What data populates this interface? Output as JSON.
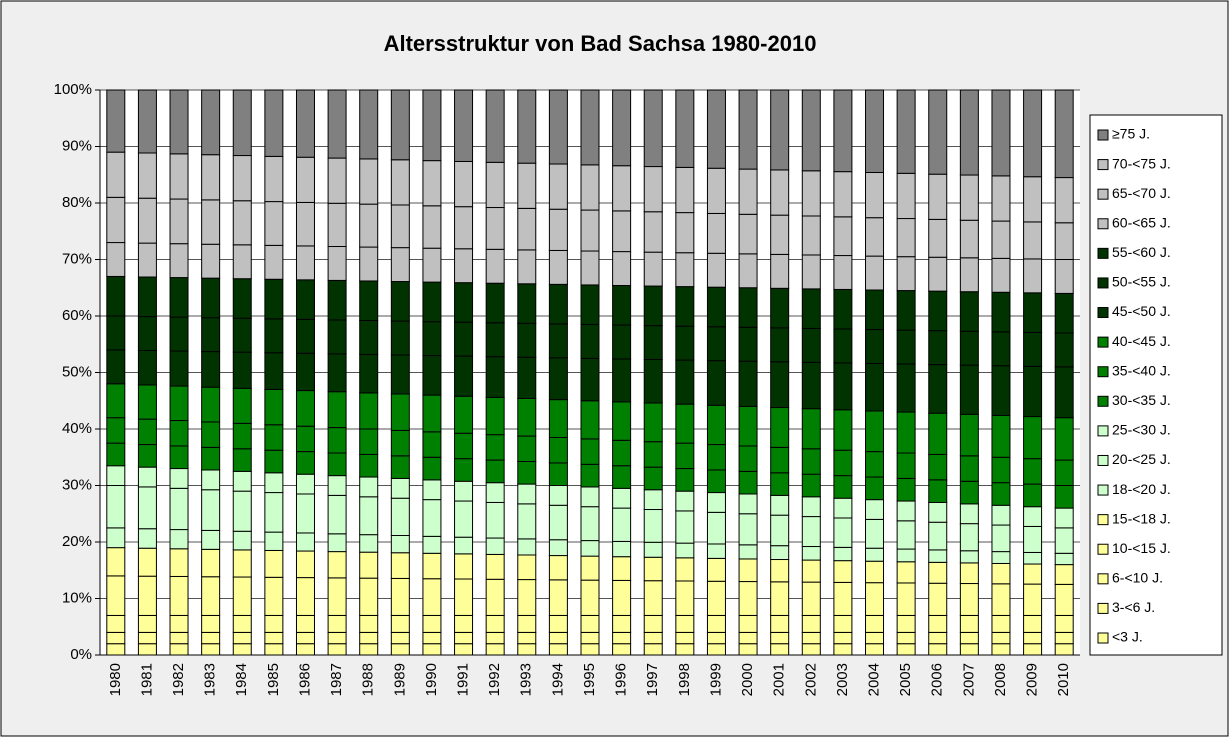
{
  "chart_data": {
    "type": "stacked_bar_100",
    "title": "Altersstruktur von Bad Sachsa 1980-2010",
    "categories": [
      "1980",
      "1981",
      "1982",
      "1983",
      "1984",
      "1985",
      "1986",
      "1987",
      "1988",
      "1989",
      "1990",
      "1991",
      "1992",
      "1993",
      "1994",
      "1995",
      "1996",
      "1997",
      "1998",
      "1999",
      "2000",
      "2001",
      "2002",
      "2003",
      "2004",
      "2005",
      "2006",
      "2007",
      "2008",
      "2009",
      "2010"
    ],
    "ylim": [
      0,
      100
    ],
    "yticks": [
      {
        "value": 0,
        "label": "0%"
      },
      {
        "value": 10,
        "label": "10%"
      },
      {
        "value": 20,
        "label": "20%"
      },
      {
        "value": 30,
        "label": "30%"
      },
      {
        "value": 40,
        "label": "40%"
      },
      {
        "value": 50,
        "label": "50%"
      },
      {
        "value": 60,
        "label": "60%"
      },
      {
        "value": 70,
        "label": "70%"
      },
      {
        "value": 80,
        "label": "80%"
      },
      {
        "value": 90,
        "label": "90%"
      },
      {
        "value": 100,
        "label": "100%"
      }
    ],
    "grid": true,
    "legend": "right",
    "series": [
      {
        "name": "<3 J.",
        "color": "#ffff99",
        "values": [
          2,
          2,
          2,
          2,
          2,
          2,
          2,
          2,
          2,
          2,
          2,
          2,
          2,
          2,
          2,
          2,
          2,
          2,
          2,
          2,
          2,
          2,
          2,
          2,
          2,
          2,
          2,
          2,
          2,
          2,
          2
        ]
      },
      {
        "name": "3-<6 J.",
        "color": "#ffff99",
        "values": [
          2,
          2,
          2,
          2,
          2,
          2,
          2,
          2,
          2,
          2,
          2,
          2,
          2,
          2,
          2,
          2,
          2,
          2,
          2,
          2,
          2,
          2,
          2,
          2,
          2,
          2,
          2,
          2,
          2,
          2,
          2
        ]
      },
      {
        "name": "6-<10 J.",
        "color": "#ffff99",
        "values": [
          3,
          3,
          3,
          3,
          3,
          3,
          3,
          3,
          3,
          3,
          3,
          3,
          3,
          3,
          3,
          3,
          3,
          3,
          3,
          3,
          3,
          3,
          3,
          3,
          3,
          3,
          3,
          3,
          3,
          3,
          3
        ]
      },
      {
        "name": "10-<15 J.",
        "color": "#ffff99",
        "values": [
          7,
          6.95,
          6.9,
          6.85,
          6.8,
          6.75,
          6.7,
          6.65,
          6.6,
          6.55,
          6.5,
          6.45,
          6.4,
          6.35,
          6.3,
          6.25,
          6.2,
          6.15,
          6.1,
          6.05,
          6,
          5.95,
          5.9,
          5.85,
          5.8,
          5.75,
          5.7,
          5.65,
          5.6,
          5.55,
          5.5
        ]
      },
      {
        "name": "15-<18 J.",
        "color": "#ffff99",
        "values": [
          5,
          4.95,
          4.9,
          4.85,
          4.8,
          4.75,
          4.7,
          4.65,
          4.6,
          4.55,
          4.5,
          4.45,
          4.4,
          4.35,
          4.3,
          4.25,
          4.2,
          4.15,
          4.1,
          4.05,
          4,
          3.95,
          3.9,
          3.85,
          3.8,
          3.75,
          3.7,
          3.65,
          3.6,
          3.55,
          3.5
        ]
      },
      {
        "name": "18-<20 J.",
        "color": "#ccffcc",
        "values": [
          3.5,
          3.45,
          3.4,
          3.35,
          3.3,
          3.25,
          3.2,
          3.15,
          3.1,
          3.05,
          3,
          2.95,
          2.9,
          2.85,
          2.8,
          2.75,
          2.7,
          2.65,
          2.6,
          2.55,
          2.5,
          2.45,
          2.4,
          2.35,
          2.3,
          2.25,
          2.2,
          2.15,
          2.1,
          2.05,
          2
        ]
      },
      {
        "name": "20-<25 J.",
        "color": "#ccffcc",
        "values": [
          7.5,
          7.4,
          7.3,
          7.2,
          7.1,
          7,
          6.9,
          6.8,
          6.7,
          6.6,
          6.5,
          6.4,
          6.3,
          6.2,
          6.1,
          6,
          5.9,
          5.8,
          5.7,
          5.6,
          5.5,
          5.4,
          5.3,
          5.2,
          5.1,
          5,
          4.9,
          4.8,
          4.7,
          4.6,
          4.5
        ]
      },
      {
        "name": "25-<30 J.",
        "color": "#ccffcc",
        "values": [
          3.5,
          3.5,
          3.5,
          3.5,
          3.5,
          3.5,
          3.5,
          3.5,
          3.5,
          3.5,
          3.5,
          3.5,
          3.5,
          3.5,
          3.5,
          3.5,
          3.5,
          3.5,
          3.5,
          3.5,
          3.5,
          3.5,
          3.5,
          3.5,
          3.5,
          3.5,
          3.5,
          3.5,
          3.5,
          3.5,
          3.5
        ]
      },
      {
        "name": "30-<35 J.",
        "color": "#008000",
        "values": [
          4,
          4,
          4,
          4,
          4,
          4,
          4,
          4,
          4,
          4,
          4,
          4,
          4,
          4,
          4,
          4,
          4,
          4,
          4,
          4,
          4,
          4,
          4,
          4,
          4,
          4,
          4,
          4,
          4,
          4,
          4
        ]
      },
      {
        "name": "35-<40 J.",
        "color": "#008000",
        "values": [
          4.5,
          4.5,
          4.5,
          4.5,
          4.5,
          4.5,
          4.5,
          4.5,
          4.5,
          4.5,
          4.5,
          4.5,
          4.5,
          4.5,
          4.5,
          4.5,
          4.5,
          4.5,
          4.5,
          4.5,
          4.5,
          4.5,
          4.5,
          4.5,
          4.5,
          4.5,
          4.5,
          4.5,
          4.5,
          4.5,
          4.5
        ]
      },
      {
        "name": "40-<45 J.",
        "color": "#008000",
        "values": [
          6,
          6.05,
          6.1,
          6.15,
          6.2,
          6.25,
          6.3,
          6.35,
          6.4,
          6.45,
          6.5,
          6.55,
          6.6,
          6.65,
          6.7,
          6.75,
          6.8,
          6.85,
          6.9,
          6.95,
          7,
          7.05,
          7.1,
          7.15,
          7.2,
          7.25,
          7.3,
          7.35,
          7.4,
          7.45,
          7.5
        ]
      },
      {
        "name": "45-<50 J.",
        "color": "#003300",
        "values": [
          6,
          6.1,
          6.2,
          6.3,
          6.4,
          6.5,
          6.6,
          6.7,
          6.8,
          6.9,
          7,
          7.1,
          7.2,
          7.3,
          7.4,
          7.5,
          7.6,
          7.7,
          7.8,
          7.9,
          8,
          8.1,
          8.2,
          8.3,
          8.4,
          8.5,
          8.6,
          8.7,
          8.8,
          8.9,
          9
        ]
      },
      {
        "name": "50-<55 J.",
        "color": "#003300",
        "values": [
          6,
          6,
          6,
          6,
          6,
          6,
          6,
          6,
          6,
          6,
          6,
          6,
          6,
          6,
          6,
          6,
          6,
          6,
          6,
          6,
          6,
          6,
          6,
          6,
          6,
          6,
          6,
          6,
          6,
          6,
          6
        ]
      },
      {
        "name": "55-<60 J.",
        "color": "#003300",
        "values": [
          7,
          7,
          7,
          7,
          7,
          7,
          7,
          7,
          7,
          7,
          7,
          7,
          7,
          7,
          7,
          7,
          7,
          7,
          7,
          7,
          7,
          7,
          7,
          7,
          7,
          7,
          7,
          7,
          7,
          7,
          7
        ]
      },
      {
        "name": "60-<65 J.",
        "color": "#c0c0c0",
        "values": [
          6,
          6,
          6,
          6,
          6,
          6,
          6,
          6,
          6,
          6,
          6,
          6,
          6,
          6,
          6,
          6,
          6,
          6,
          6,
          6,
          6,
          6,
          6,
          6,
          6,
          6,
          6,
          6,
          6,
          6,
          6
        ]
      },
      {
        "name": "65-<70 J.",
        "color": "#c0c0c0",
        "values": [
          8,
          7.95,
          7.9,
          7.85,
          7.8,
          7.75,
          7.7,
          7.65,
          7.6,
          7.55,
          7.5,
          7.45,
          7.4,
          7.35,
          7.3,
          7.25,
          7.2,
          7.15,
          7.1,
          7.05,
          7,
          6.95,
          6.9,
          6.85,
          6.8,
          6.75,
          6.7,
          6.65,
          6.6,
          6.55,
          6.5
        ]
      },
      {
        "name": "70-<75 J.",
        "color": "#c0c0c0",
        "values": [
          8,
          8,
          8,
          8,
          8,
          8,
          8,
          8,
          8,
          8,
          8,
          8,
          8,
          8,
          8,
          8,
          8,
          8,
          8,
          8,
          8,
          8,
          8,
          8,
          8,
          8,
          8,
          8,
          8,
          8,
          8
        ]
      },
      {
        "name": "≥75 J.",
        "color": "#808080",
        "values": [
          11,
          11.15,
          11.3,
          11.45,
          11.6,
          11.75,
          11.9,
          12.05,
          12.2,
          12.35,
          12.5,
          12.65,
          12.8,
          12.95,
          13.1,
          13.25,
          13.4,
          13.55,
          13.7,
          13.85,
          14,
          14.15,
          14.3,
          14.45,
          14.6,
          14.75,
          14.9,
          15.05,
          15.2,
          15.35,
          15.5
        ]
      }
    ]
  }
}
